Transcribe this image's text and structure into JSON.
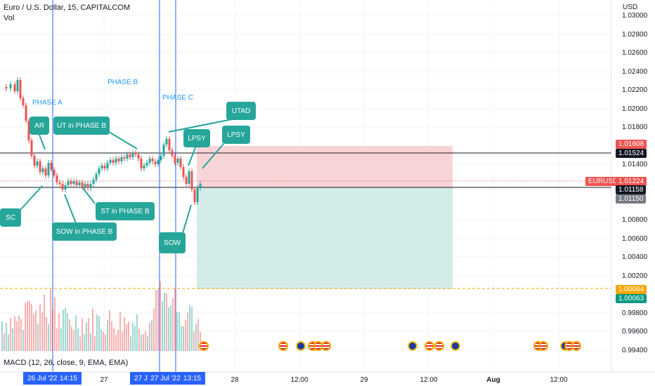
{
  "header": {
    "symbol_title": "Euro / U.S. Dollar, 15, CAPITALCOM",
    "volume_label": "Vol",
    "currency": "USD",
    "macd_label": "MACD (12, 26, close, 9, EMA, EMA)"
  },
  "price_axis": {
    "ticks": [
      "1.03000",
      "1.02800",
      "1.02600",
      "1.02400",
      "1.02200",
      "1.02000",
      "1.01800",
      "1.01400",
      "1.00800",
      "1.00600",
      "1.00400",
      "1.00200",
      "0.99800",
      "0.99600",
      "0.99400"
    ]
  },
  "price_tags": {
    "stop": "1.01608",
    "upper_line": "1.01524",
    "symbol": "EURUSD",
    "last": "1.01224",
    "lower_line": "1.01158",
    "entry": "1.01150",
    "target_1": "1.00064",
    "target_2": "1.00063"
  },
  "time_axis": {
    "highlight_1_date": "26 Jul '22",
    "highlight_1_time": "14:15",
    "highlight_2_a": "27 J",
    "highlight_2_date": "27 Jul '22",
    "highlight_2_time": "13:15",
    "labels": [
      "27",
      "28",
      "12:00",
      "29",
      "12:00",
      "Aug",
      "12:00"
    ]
  },
  "annotations": {
    "phase_a": "PHASE A",
    "phase_b": "PHASE B",
    "phase_c": "PHASE C",
    "ar": "AR",
    "ut_phase_b": "UT in PHASE B",
    "utad": "UTAD",
    "lpsy_1": "LPSY",
    "lpsy_2": "LPSY",
    "sc": "SC",
    "sow_phase_b": "SOW in PHASE B",
    "st_phase_b": "ST in PHASE B",
    "sow": "SOW"
  },
  "colors": {
    "bull": "#26a69a",
    "bear": "#ef5350",
    "stop_zone": "#f8cdd0",
    "target_zone": "#cde9e4",
    "vline": "#2962ff",
    "callout": "#26a69a",
    "phase_text": "#2196f3"
  },
  "event_icons": [
    "us-flag-icon",
    "us-flag-icon",
    "eu-flag-icon",
    "us-flag-icon",
    "us-flag-icon",
    "us-flag-icon",
    "eu-flag-icon",
    "us-flag-icon",
    "us-flag-icon",
    "eu-flag-icon",
    "us-flag-icon",
    "us-flag-icon",
    "eu-flag-icon",
    "us-flag-icon",
    "us-flag-icon"
  ]
}
